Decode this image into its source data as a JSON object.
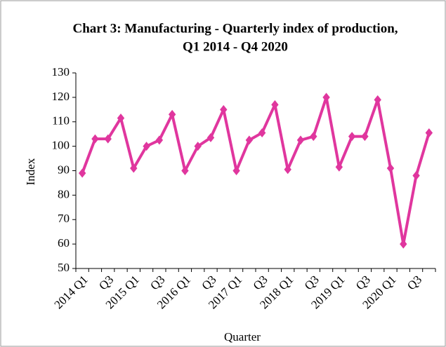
{
  "chart_data": {
    "type": "line",
    "title": [
      "Chart 3: Manufacturing - Quarterly index of production,",
      "Q1 2014 - Q4 2020"
    ],
    "x_label": "Quarter",
    "y_label": "Index",
    "categories": [
      "2014 Q1",
      null,
      "Q3",
      null,
      "2015 Q1",
      null,
      "Q3",
      null,
      "2016 Q1",
      null,
      "Q3",
      null,
      "2017 Q1",
      null,
      "Q3",
      null,
      "2018 Q1",
      null,
      "Q3",
      null,
      "2019 Q1",
      null,
      "Q3",
      null,
      "2020 Q1",
      null,
      "Q3",
      null
    ],
    "series": [
      {
        "name": "Index",
        "color": "#e0369e",
        "values": [
          89,
          103,
          103,
          111.5,
          91,
          100,
          102.5,
          113,
          90,
          100,
          103.5,
          115,
          90,
          102.5,
          105.5,
          117,
          90.5,
          102.5,
          104,
          120,
          91.5,
          104,
          104,
          119,
          91,
          60,
          88,
          105.5
        ]
      }
    ],
    "ylim": [
      50,
      130
    ],
    "yticks": [
      50,
      60,
      70,
      80,
      90,
      100,
      110,
      120,
      130
    ]
  }
}
